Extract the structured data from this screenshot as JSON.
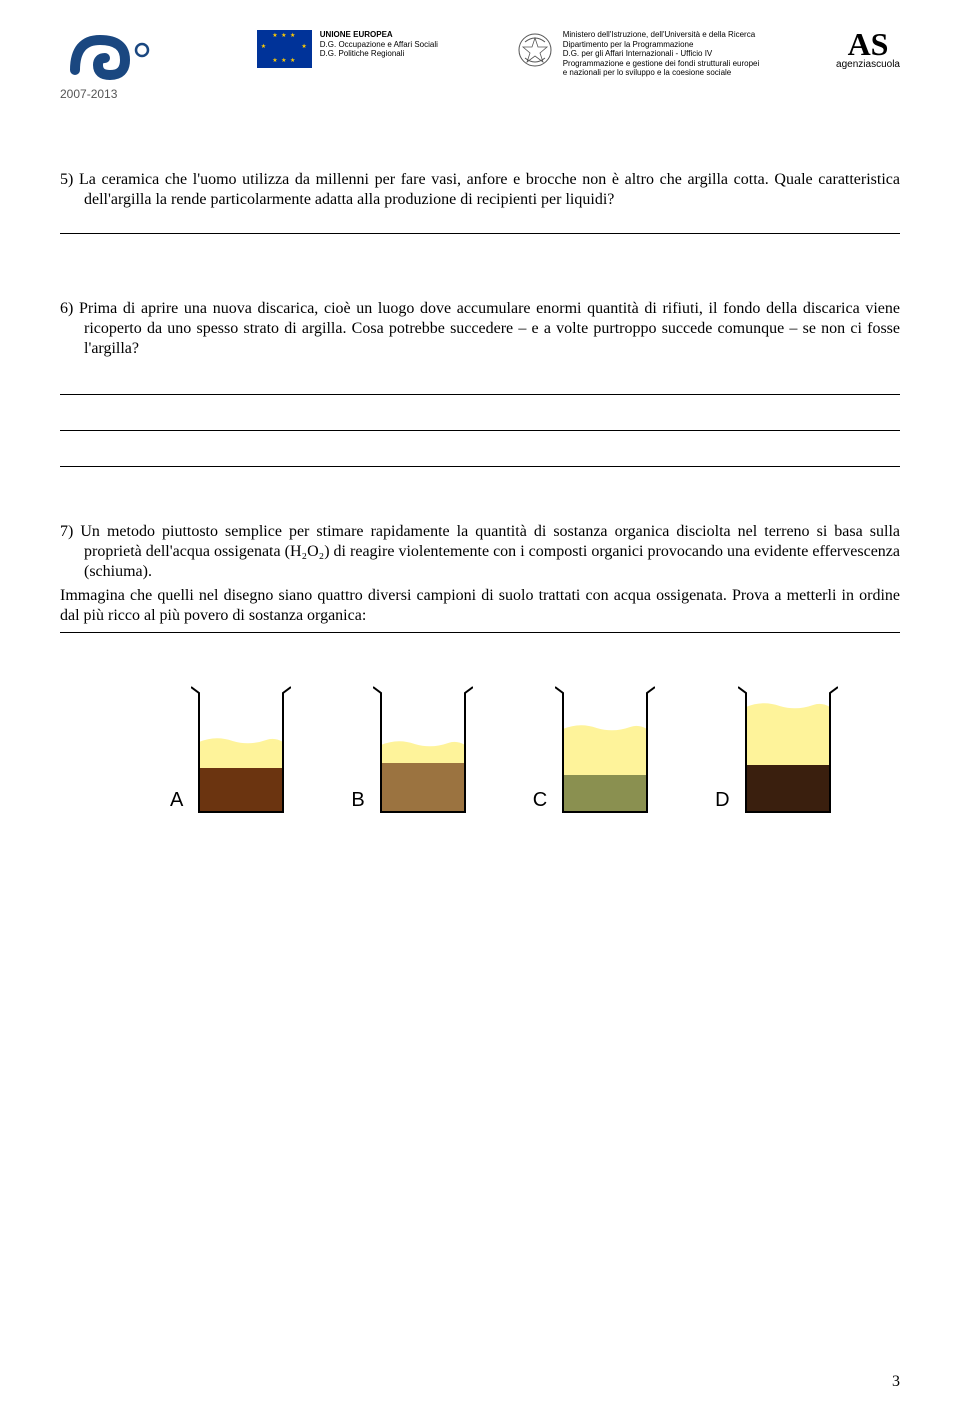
{
  "header": {
    "pon_years": "2007-2013",
    "eu_title": "UNIONE EUROPEA",
    "eu_line1": "D.G. Occupazione e Affari Sociali",
    "eu_line2": "D.G. Politiche Regionali",
    "ministry_line1": "Ministero dell'Istruzione, dell'Università e della Ricerca",
    "ministry_line2": "Dipartimento per la Programmazione",
    "ministry_line3": "D.G. per gli Affari Internazionali - Ufficio IV",
    "ministry_line4": "Programmazione e gestione dei fondi strutturali europei",
    "ministry_line5": "e nazionali per lo sviluppo e la coesione sociale",
    "as_label": "AS",
    "as_sub": "agenziascuola"
  },
  "questions": {
    "q5": "5) La ceramica che l'uomo utilizza da millenni per fare vasi, anfore e brocche non è altro che argilla cotta. Quale caratteristica dell'argilla la rende particolarmente adatta alla produzione di recipienti per liquidi?",
    "q6": "6) Prima di aprire una nuova discarica, cioè un luogo dove accumulare enormi quantità di rifiuti, il fondo della discarica viene ricoperto da uno spesso strato di argilla. Cosa potrebbe succedere – e a volte purtroppo succede comunque – se non ci fosse l'argilla?",
    "q7": "7) Un metodo piuttosto semplice per stimare rapidamente la quantità di sostanza organica disciolta nel terreno si basa sulla proprietà dell'acqua ossigenata (H₂O₂) di reagire violentemente con i composti organici provocando una evidente effervescenza (schiuma).",
    "q7_sub1": "Immagina che quelli nel disegno siano quattro diversi campioni di suolo trattati con acqua ossigenata. Prova a metterli in ordine dal più ricco al più povero di sostanza organica:"
  },
  "beakers": {
    "items": [
      {
        "label": "A",
        "soil_color": "#6b3410",
        "foam_height": 30,
        "soil_height": 45,
        "foam_color": "#fef39a"
      },
      {
        "label": "B",
        "soil_color": "#9b7340",
        "foam_height": 22,
        "soil_height": 50,
        "foam_color": "#fef39a"
      },
      {
        "label": "C",
        "soil_color": "#8a9050",
        "foam_height": 50,
        "soil_height": 38,
        "foam_color": "#fef39a"
      },
      {
        "label": "D",
        "soil_color": "#3a1f0e",
        "foam_height": 62,
        "soil_height": 48,
        "foam_color": "#fef39a"
      }
    ],
    "outline_color": "#000000",
    "beaker_width": 100,
    "beaker_height": 130
  },
  "page_number": "3"
}
